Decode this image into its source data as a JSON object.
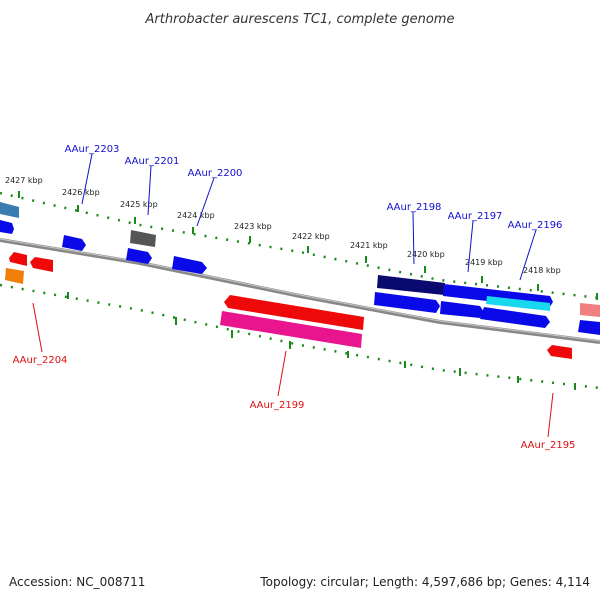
{
  "title": "Arthrobacter aurescens TC1, complete genome",
  "accession": "Accession: NC_008711",
  "summary": "Topology: circular; Length: 4,597,686 bp; Genes: 4,114",
  "colors": {
    "backbone": "#808080",
    "tick": "#1a8a1a",
    "label_top": "#1010cc",
    "label_bottom": "#dd1010",
    "forward_gene": "#0a0ae8",
    "reverse_gene": "#ee0a0a"
  },
  "scale_labels": [
    "2427 kbp",
    "2426 kbp",
    "2425 kbp",
    "2424 kbp",
    "2423 kbp",
    "2422 kbp",
    "2421 kbp",
    "2420 kbp",
    "2419 kbp",
    "2418 kbp"
  ],
  "gene_labels": {
    "top": [
      "AAur_2203",
      "AAur_2201",
      "AAur_2200",
      "AAur_2198",
      "AAur_2197",
      "AAur_2196"
    ],
    "bottom": [
      "AAur_2204",
      "AAur_2199",
      "AAur_2195"
    ]
  }
}
